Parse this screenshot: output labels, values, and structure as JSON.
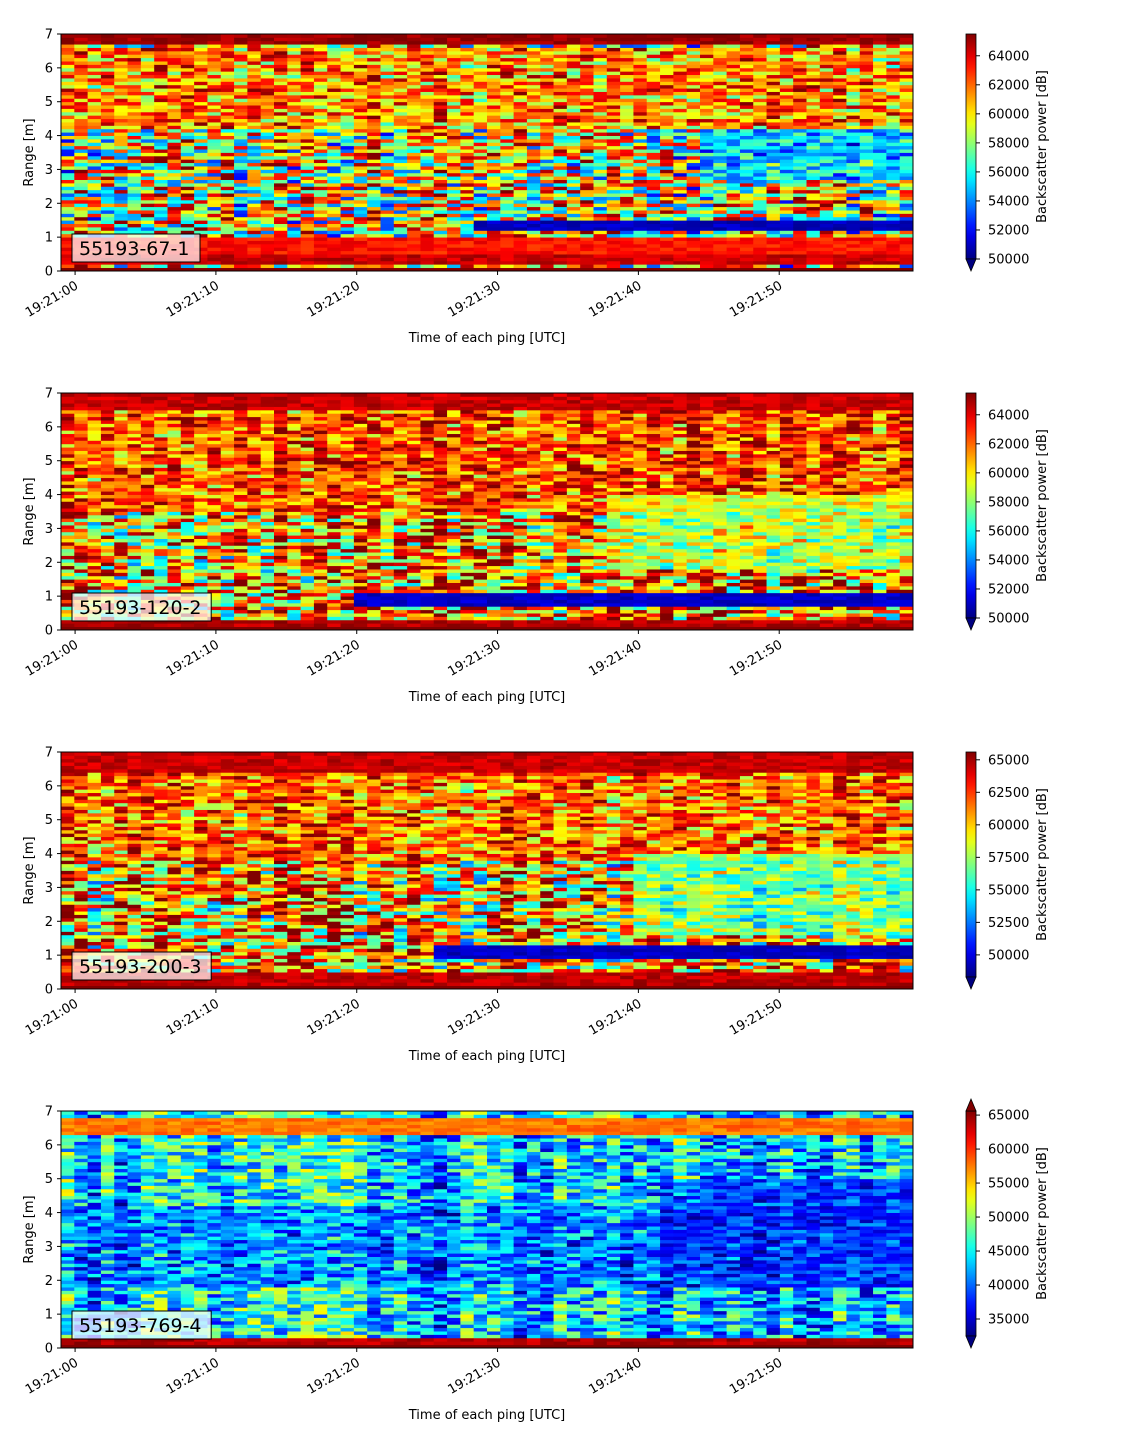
{
  "figure": {
    "panel_count": 4
  },
  "chart_data": [
    {
      "type": "heatmap",
      "label": "55193-67-1",
      "xlabel": "Time of each ping [UTC]",
      "ylabel": "Range [m]",
      "xticks": [
        "19:21:00",
        "19:21:10",
        "19:21:20",
        "19:21:30",
        "19:21:40",
        "19:21:50"
      ],
      "xlim_seconds": [
        -1,
        59.5
      ],
      "yticks": [
        0,
        1,
        2,
        3,
        4,
        5,
        6,
        7
      ],
      "ylim": [
        0,
        7
      ],
      "colorbar_label": "Backscatter power [dB]",
      "colorbar_ticks": [
        "50000",
        "52000",
        "54000",
        "56000",
        "58000",
        "60000",
        "62000",
        "64000"
      ],
      "colorbar_tick_values": [
        50000,
        52000,
        54000,
        56000,
        58000,
        60000,
        62000,
        64000
      ],
      "clim": [
        50000,
        65500
      ],
      "extend": "min",
      "colormap": "jet",
      "pattern": {
        "base": 0.58,
        "noise": 0.4,
        "bands": [
          {
            "from": 0.18,
            "to": 0.5,
            "level": 0.93
          },
          {
            "from": 0.5,
            "to": 1.0,
            "level": 0.86
          },
          {
            "from": 6.7,
            "to": 7.0,
            "level": 0.97
          }
        ],
        "trend": {
          "from": 4.2,
          "to": 6.6,
          "level": 0.85
        },
        "dark_layer": {
          "start_time": 28,
          "y": 1.35,
          "thickness": 0.3,
          "level": 0.02
        },
        "dark_zone": {
          "start_time": 44,
          "y_from": 2.7,
          "y_to": 4.2,
          "level": 0.15
        }
      }
    },
    {
      "type": "heatmap",
      "label": "55193-120-2",
      "xlabel": "Time of each ping [UTC]",
      "ylabel": "Range [m]",
      "xticks": [
        "19:21:00",
        "19:21:10",
        "19:21:20",
        "19:21:30",
        "19:21:40",
        "19:21:50"
      ],
      "xlim_seconds": [
        -1,
        59.5
      ],
      "yticks": [
        0,
        1,
        2,
        3,
        4,
        5,
        6,
        7
      ],
      "ylim": [
        0,
        7
      ],
      "colorbar_label": "Backscatter power [dB]",
      "colorbar_ticks": [
        "50000",
        "52000",
        "54000",
        "56000",
        "58000",
        "60000",
        "62000",
        "64000"
      ],
      "colorbar_tick_values": [
        50000,
        52000,
        54000,
        56000,
        58000,
        60000,
        62000,
        64000
      ],
      "clim": [
        50000,
        65500
      ],
      "extend": "min",
      "colormap": "jet",
      "pattern": {
        "base": 0.72,
        "noise": 0.36,
        "bands": [
          {
            "from": 0.05,
            "to": 0.35,
            "level": 0.95
          },
          {
            "from": 6.5,
            "to": 7.0,
            "level": 0.93
          }
        ],
        "trend": {
          "from": 3.5,
          "to": 6.6,
          "level": 0.86
        },
        "dark_layer": {
          "start_time": 20,
          "y": 0.9,
          "thickness": 0.35,
          "level": 0.03
        },
        "dark_zone": {
          "start_time": 38,
          "y_from": 1.8,
          "y_to": 4.0,
          "level": 0.45
        }
      }
    },
    {
      "type": "heatmap",
      "label": "55193-200-3",
      "xlabel": "Time of each ping [UTC]",
      "ylabel": "Range [m]",
      "xticks": [
        "19:21:00",
        "19:21:10",
        "19:21:20",
        "19:21:30",
        "19:21:40",
        "19:21:50"
      ],
      "xlim_seconds": [
        -1,
        59.5
      ],
      "yticks": [
        0,
        1,
        2,
        3,
        4,
        5,
        6,
        7
      ],
      "ylim": [
        0,
        7
      ],
      "colorbar_label": "Backscatter power [dB]",
      "colorbar_ticks": [
        "50000",
        "52500",
        "55000",
        "57500",
        "60000",
        "62500",
        "65000"
      ],
      "colorbar_tick_values": [
        50000,
        52500,
        55000,
        57500,
        60000,
        62500,
        65000
      ],
      "clim": [
        48300,
        65600
      ],
      "extend": "min",
      "colormap": "jet",
      "pattern": {
        "base": 0.68,
        "noise": 0.38,
        "bands": [
          {
            "from": 0.05,
            "to": 0.45,
            "level": 0.94
          },
          {
            "from": 6.4,
            "to": 7.0,
            "level": 0.93
          }
        ],
        "trend": {
          "from": 3.8,
          "to": 6.6,
          "level": 0.82
        },
        "dark_layer": {
          "start_time": 25,
          "y": 1.1,
          "thickness": 0.35,
          "level": 0.03
        },
        "dark_zone": {
          "start_time": 40,
          "y_from": 1.6,
          "y_to": 4.0,
          "level": 0.38
        }
      }
    },
    {
      "type": "heatmap",
      "label": "55193-769-4",
      "xlabel": "Time of each ping [UTC]",
      "ylabel": "Range [m]",
      "xticks": [
        "19:21:00",
        "19:21:10",
        "19:21:20",
        "19:21:30",
        "19:21:40",
        "19:21:50"
      ],
      "xlim_seconds": [
        -1,
        59.5
      ],
      "yticks": [
        0,
        1,
        2,
        3,
        4,
        5,
        6,
        7
      ],
      "ylim": [
        0,
        7
      ],
      "colorbar_label": "Backscatter power [dB]",
      "colorbar_ticks": [
        "35000",
        "40000",
        "45000",
        "50000",
        "55000",
        "60000",
        "65000"
      ],
      "colorbar_tick_values": [
        35000,
        40000,
        45000,
        50000,
        55000,
        60000,
        65000
      ],
      "clim": [
        32500,
        65600
      ],
      "extend": "both",
      "colormap": "jet",
      "pattern": {
        "base": 0.33,
        "noise": 0.22,
        "bands": [
          {
            "from": 0.05,
            "to": 0.3,
            "level": 0.95
          },
          {
            "from": 6.3,
            "to": 6.75,
            "level": 0.76
          }
        ],
        "trend": {
          "from": 1.8,
          "to": 4.2,
          "level": 0.18
        },
        "dark_layer": {
          "start_time": 100,
          "y": 1.0,
          "thickness": 0.2,
          "level": 0.1
        },
        "dark_zone": {
          "start_time": 42,
          "y_from": 1.8,
          "y_to": 5.0,
          "level": 0.12
        }
      }
    }
  ]
}
